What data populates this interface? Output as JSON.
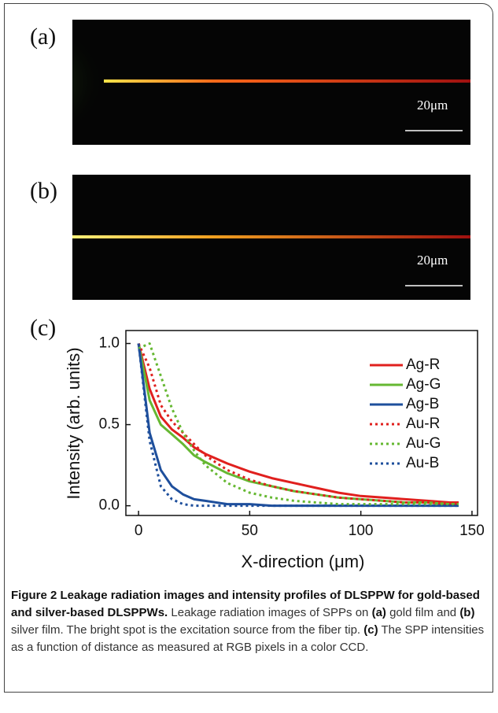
{
  "panels": [
    {
      "label": "(a)",
      "scale_bar": "20μm"
    },
    {
      "label": "(b)",
      "scale_bar": "20μm"
    },
    {
      "label": "(c)"
    }
  ],
  "chart_data": {
    "type": "line",
    "x_label": "X-direction (μm)",
    "y_label": "Intensity (arb. units)",
    "x": [
      0,
      5,
      10,
      15,
      20,
      25,
      30,
      40,
      50,
      60,
      70,
      80,
      90,
      100,
      110,
      120,
      130,
      140,
      144
    ],
    "series": [
      {
        "name": "Ag-R",
        "color": "#e0201e",
        "style": "solid",
        "values": [
          1.0,
          0.72,
          0.55,
          0.47,
          0.42,
          0.36,
          0.32,
          0.26,
          0.21,
          0.17,
          0.14,
          0.11,
          0.08,
          0.06,
          0.05,
          0.04,
          0.03,
          0.02,
          0.02
        ]
      },
      {
        "name": "Ag-G",
        "color": "#66b832",
        "style": "solid",
        "values": [
          1.0,
          0.65,
          0.5,
          0.44,
          0.38,
          0.31,
          0.27,
          0.2,
          0.15,
          0.12,
          0.09,
          0.07,
          0.05,
          0.04,
          0.03,
          0.02,
          0.02,
          0.01,
          0.01
        ]
      },
      {
        "name": "Ag-B",
        "color": "#1e4f9c",
        "style": "solid",
        "values": [
          1.0,
          0.45,
          0.22,
          0.12,
          0.07,
          0.04,
          0.03,
          0.01,
          0.01,
          0,
          0,
          0,
          0,
          0,
          0,
          0,
          0,
          0,
          0
        ]
      },
      {
        "name": "Au-R",
        "color": "#e0201e",
        "style": "dotted",
        "values": [
          1.0,
          0.85,
          0.62,
          0.52,
          0.45,
          0.38,
          0.31,
          0.22,
          0.16,
          0.12,
          0.09,
          0.07,
          0.05,
          0.04,
          0.03,
          0.02,
          0.02,
          0.01,
          0.01
        ]
      },
      {
        "name": "Au-G",
        "color": "#66b832",
        "style": "dotted",
        "values": [
          0.97,
          1.0,
          0.8,
          0.6,
          0.45,
          0.34,
          0.25,
          0.14,
          0.08,
          0.05,
          0.03,
          0.02,
          0.01,
          0.01,
          0.01,
          0.01,
          0.01,
          0.01,
          0.01
        ]
      },
      {
        "name": "Au-B",
        "color": "#1e4f9c",
        "style": "dotted",
        "values": [
          1.0,
          0.4,
          0.12,
          0.04,
          0.01,
          0,
          0,
          0,
          0,
          0,
          0,
          0,
          0,
          0,
          0,
          0,
          0,
          0,
          0
        ]
      }
    ],
    "xlim": [
      -5.7,
      152.5
    ],
    "ylim": [
      -0.06,
      1.08
    ],
    "xticks": [
      0,
      50,
      100,
      150
    ],
    "yticks": [
      {
        "value": 0,
        "label": "0.0"
      },
      0.5,
      {
        "value": 1,
        "label": "1.0"
      }
    ],
    "legend": "upper right"
  },
  "caption": {
    "title": "Figure 2 Leakage radiation images and intensity profiles of DLSPPW for gold-based and silver-based DLSPPWs.",
    "segments": [
      {
        "text": "Leakage radiation images of SPPs on ",
        "bold": false
      },
      {
        "text": "(a)",
        "bold": true
      },
      {
        "text": "gold film and ",
        "bold": false
      },
      {
        "text": "(b)",
        "bold": true
      },
      {
        "text": "silver film. The bright spot is the excitation source from the fiber tip. ",
        "bold": false
      },
      {
        "text": "(c)",
        "bold": true
      },
      {
        "text": "The SPP intensities as a function of distance as measured at RGB pixels in a color CCD.",
        "bold": false
      }
    ]
  }
}
